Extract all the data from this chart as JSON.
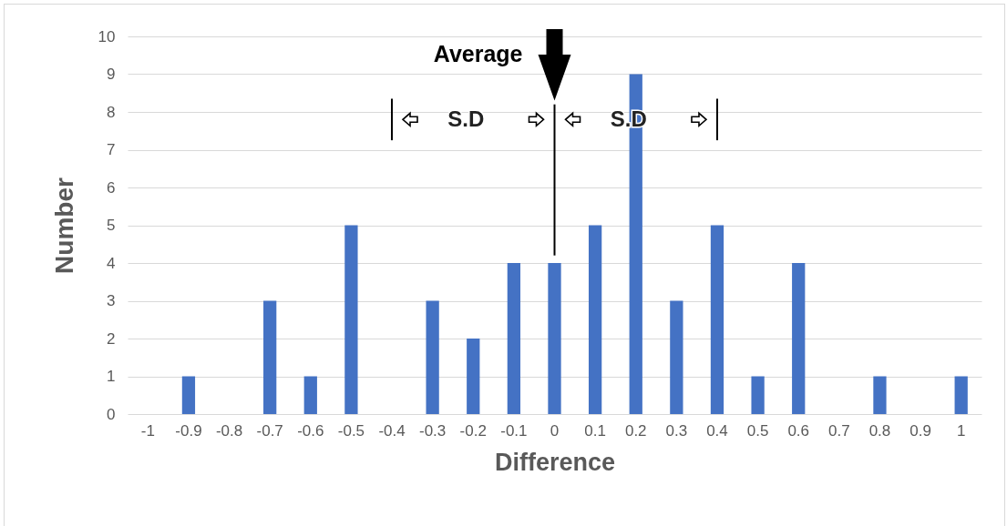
{
  "chart_data": {
    "type": "bar",
    "xlabel": "Difference",
    "ylabel": "Number",
    "categories": [
      "-1",
      "-0.9",
      "-0.8",
      "-0.7",
      "-0.6",
      "-0.5",
      "-0.4",
      "-0.3",
      "-0.2",
      "-0.1",
      "0",
      "0.1",
      "0.2",
      "0.3",
      "0.4",
      "0.5",
      "0.6",
      "0.7",
      "0.8",
      "0.9",
      "1"
    ],
    "values": [
      0,
      1,
      0,
      3,
      1,
      5,
      0,
      3,
      2,
      4,
      4,
      5,
      9,
      3,
      5,
      1,
      4,
      0,
      1,
      0,
      1
    ],
    "color": "#4472c4",
    "ylim": [
      0,
      10
    ],
    "yticks": [
      0,
      1,
      2,
      3,
      4,
      5,
      6,
      7,
      8,
      9,
      10
    ],
    "grid": "y",
    "ref_lines": [
      {
        "axis": "x",
        "value": "0",
        "label": "Average"
      },
      {
        "axis": "x",
        "value": "-0.4"
      },
      {
        "axis": "x",
        "value": "0.4"
      }
    ],
    "annotations": [
      "S.D",
      "S.D"
    ]
  }
}
